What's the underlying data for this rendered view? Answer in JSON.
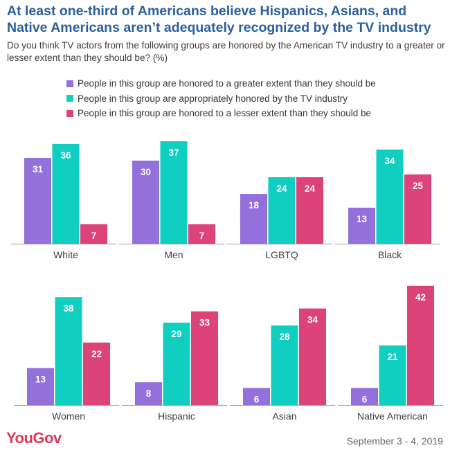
{
  "header": {
    "title": "At least one-third of Americans believe Hispanics, Asians, and Native Americans aren’t adequately recognized by the TV industry",
    "subtitle": "Do you think TV actors from the following groups are honored by the American TV industry to a greater or lesser extent than they should be? (%)"
  },
  "colors": {
    "greater": "#9370db",
    "appropriate": "#10cfc1",
    "lesser": "#dc4379",
    "title": "#2b5f9e",
    "brand": "#e0385a"
  },
  "chart_data": {
    "type": "bar",
    "categories": [
      "White",
      "Men",
      "LGBTQ",
      "Black",
      "Women",
      "Hispanic",
      "Asian",
      "Native American"
    ],
    "series": [
      {
        "name": "People in this group are honored to a greater extent than they should be",
        "values": [
          31,
          30,
          18,
          13,
          13,
          8,
          6,
          6
        ]
      },
      {
        "name": "People in this group are appropriately honored by the TV industry",
        "values": [
          36,
          37,
          24,
          34,
          38,
          29,
          28,
          21
        ]
      },
      {
        "name": "People in this group are honored to a lesser extent than they should be",
        "values": [
          7,
          7,
          24,
          25,
          22,
          33,
          34,
          42
        ]
      }
    ],
    "data_labels": true,
    "grid": false,
    "legend": "top-left",
    "ylim": [
      0,
      42
    ]
  },
  "footer": {
    "brand": "YouGov",
    "date": "September 3 - 4, 2019"
  }
}
